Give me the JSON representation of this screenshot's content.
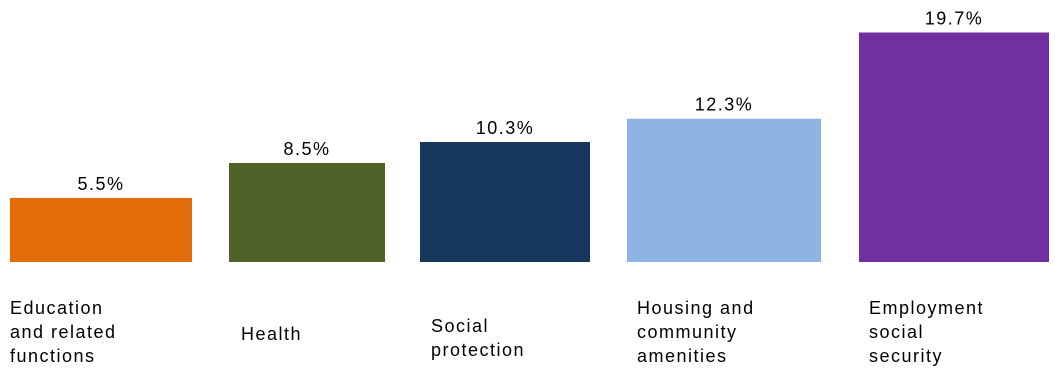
{
  "chart_data": {
    "type": "bar",
    "categories": [
      "Education and related functions",
      "Health",
      "Social protection",
      "Housing and community amenities",
      "Employment social security"
    ],
    "category_lines": [
      [
        "Education",
        "and related",
        "functions"
      ],
      [
        "Health"
      ],
      [
        "Social",
        "protection"
      ],
      [
        "Housing and",
        "community",
        "amenities"
      ],
      [
        "Employment",
        "social",
        "security"
      ]
    ],
    "values": [
      5.5,
      8.5,
      10.3,
      12.3,
      19.7
    ],
    "value_labels": [
      "5.5%",
      "8.5%",
      "10.3%",
      "12.3%",
      "19.7%"
    ],
    "colors": [
      "#e36c0a",
      "#4f6228",
      "#17375e",
      "#8eb4e3",
      "#7030a0"
    ],
    "title": "",
    "xlabel": "",
    "ylabel": "",
    "ylim": [
      0,
      20
    ],
    "grid": false,
    "legend": "none"
  }
}
